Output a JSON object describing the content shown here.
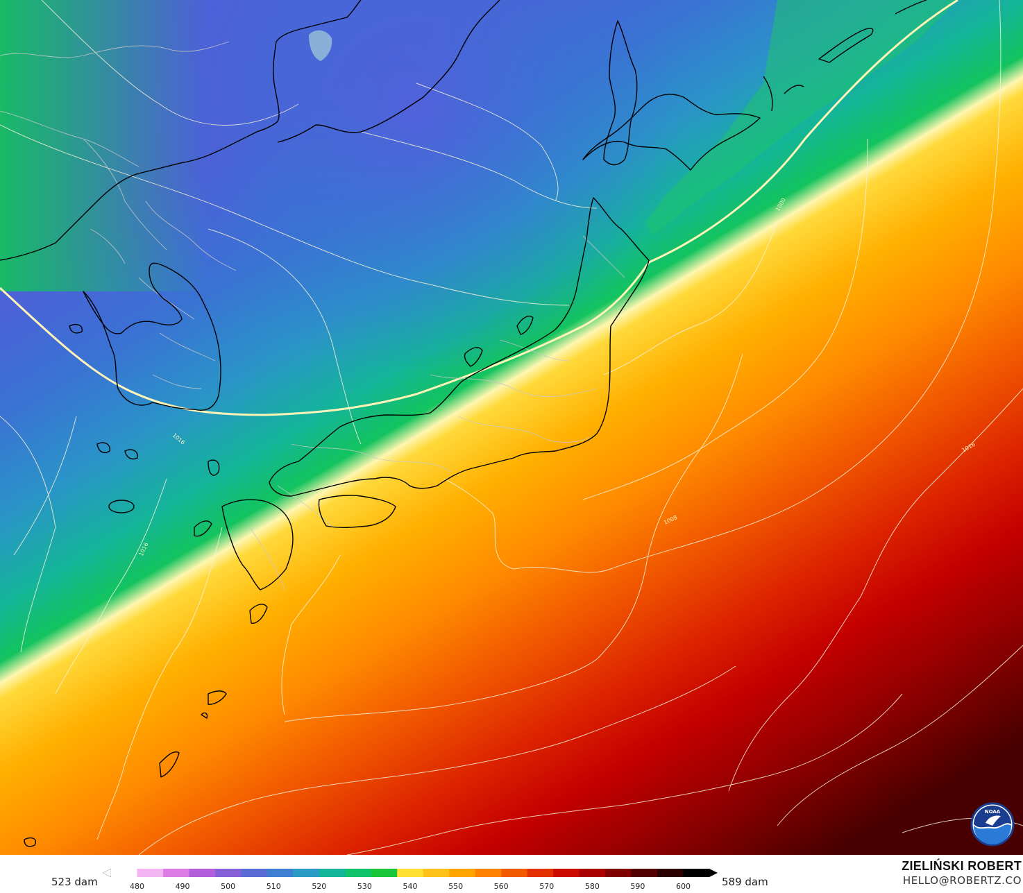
{
  "map": {
    "coast_color": "#000000",
    "border_color": "#c8c8c8",
    "isobar_color": "#f5f5dc",
    "isobar_labels": [
      "1000",
      "1008",
      "1016",
      "1016",
      "1016"
    ]
  },
  "legend": {
    "min_label": "523 dam",
    "max_label": "589 dam",
    "ticks": [
      "480",
      "490",
      "500",
      "510",
      "520",
      "530",
      "540",
      "550",
      "560",
      "570",
      "580",
      "590",
      "600"
    ],
    "colors": [
      "#ffffff",
      "#f3b6f3",
      "#de7ce6",
      "#b35fdc",
      "#8660d8",
      "#5a6ad6",
      "#3f7fd3",
      "#2a9bc4",
      "#12b49a",
      "#0fc46a",
      "#19c63a",
      "#ffe033",
      "#ffc21a",
      "#ffa400",
      "#ff8200",
      "#f25a00",
      "#e23000",
      "#cc0a00",
      "#aa0000",
      "#7e0000",
      "#520000",
      "#2a0000",
      "#000000"
    ]
  },
  "credit": {
    "author": "ZIELIŃSKI ROBERT",
    "email": "HELLO@ROBERTZ.CO"
  },
  "logo": {
    "name": "noaa-logo",
    "text": "NOAA"
  }
}
